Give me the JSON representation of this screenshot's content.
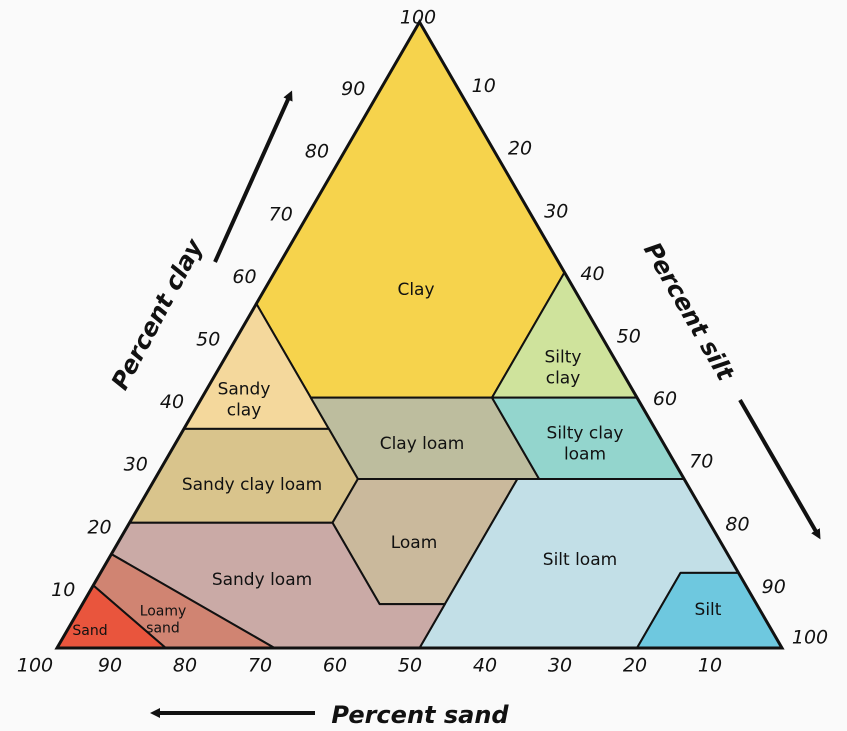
{
  "axes": {
    "clay": {
      "title": "Percent clay",
      "ticks": [
        10,
        20,
        30,
        40,
        50,
        60,
        70,
        80,
        90,
        100
      ]
    },
    "silt": {
      "title": "Percent silt",
      "ticks": [
        10,
        20,
        30,
        40,
        50,
        60,
        70,
        80,
        90,
        100
      ]
    },
    "sand": {
      "title": "Percent sand",
      "ticks": [
        100,
        90,
        80,
        70,
        60,
        50,
        40,
        30,
        20,
        10
      ]
    }
  },
  "regions": [
    {
      "name": [
        "Clay"
      ]
    },
    {
      "name": [
        "Sandy",
        "clay"
      ]
    },
    {
      "name": [
        "Silty",
        "clay"
      ]
    },
    {
      "name": [
        "Clay loam"
      ]
    },
    {
      "name": [
        "Silty clay",
        "loam"
      ]
    },
    {
      "name": [
        "Sandy clay loam"
      ]
    },
    {
      "name": [
        "Loam"
      ]
    },
    {
      "name": [
        "Silt loam"
      ]
    },
    {
      "name": [
        "Silt"
      ]
    },
    {
      "name": [
        "Sandy loam"
      ]
    },
    {
      "name": [
        "Loamy",
        "sand"
      ]
    },
    {
      "name": [
        "Sand"
      ]
    }
  ]
}
